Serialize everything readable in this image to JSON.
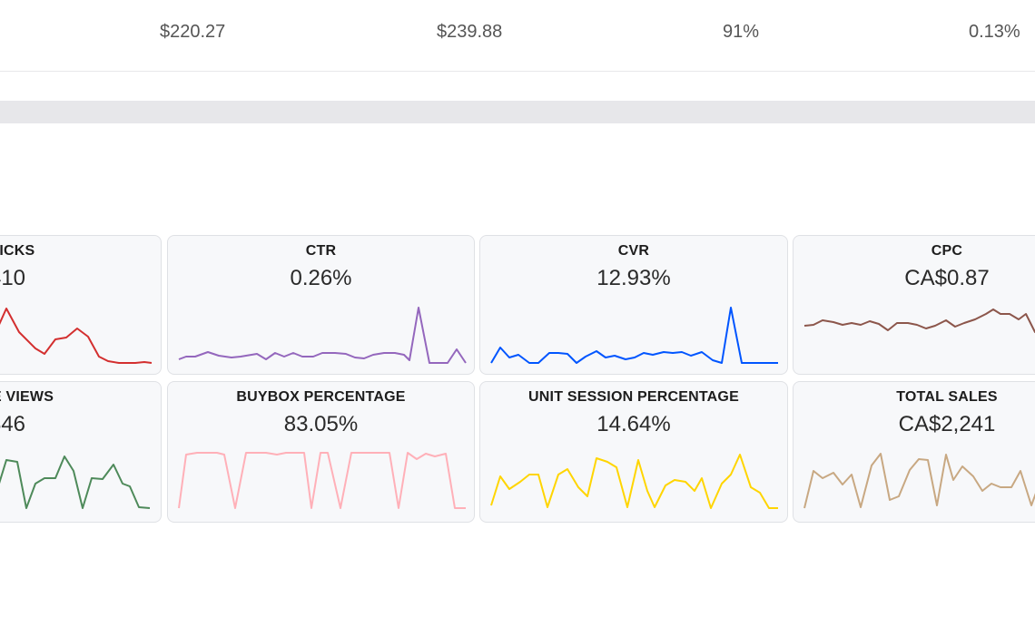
{
  "top_row": {
    "values": [
      "$220.27",
      "$239.88",
      "91%",
      "0.13%"
    ]
  },
  "cards": [
    {
      "label": "CLICKS",
      "value": "410",
      "color": "#d32f2f",
      "series": [
        20,
        55,
        30,
        22,
        14,
        8,
        22,
        24,
        34,
        26,
        6,
        2,
        1,
        1,
        1,
        1,
        2,
        1
      ]
    },
    {
      "label": "CTR",
      "value": "0.26%",
      "color": "#9467bd",
      "series": [
        2,
        3,
        3,
        5,
        3,
        2,
        2,
        3,
        3,
        2,
        2,
        3,
        2,
        3,
        2,
        2,
        2,
        3,
        3,
        3,
        2,
        2,
        3,
        3,
        3,
        2,
        1,
        0,
        0,
        0,
        0,
        0,
        0,
        0,
        0,
        0,
        0,
        0,
        0,
        0,
        0,
        0,
        0,
        0,
        0,
        0,
        0,
        0,
        0,
        0,
        0,
        0,
        0,
        0,
        0,
        0,
        0,
        0
      ]
    },
    {
      "label": "CVR",
      "value": "12.93%",
      "color": "#0055ff",
      "series": []
    },
    {
      "label": "CPC",
      "value": "CA$0.87",
      "color": "#8c564b",
      "series": []
    },
    {
      "label": "PAGE VIEWS",
      "value": "346",
      "color": "#4e8a5a",
      "series": []
    },
    {
      "label": "BUYBOX PERCENTAGE",
      "value": "83.05%",
      "color": "#ffb0b8",
      "series": []
    },
    {
      "label": "UNIT SESSION PERCENTAGE",
      "value": "14.64%",
      "color": "#ffd500",
      "series": []
    },
    {
      "label": "TOTAL SALES",
      "value": "CA$2,241",
      "color": "#c8a882",
      "series": []
    }
  ]
}
